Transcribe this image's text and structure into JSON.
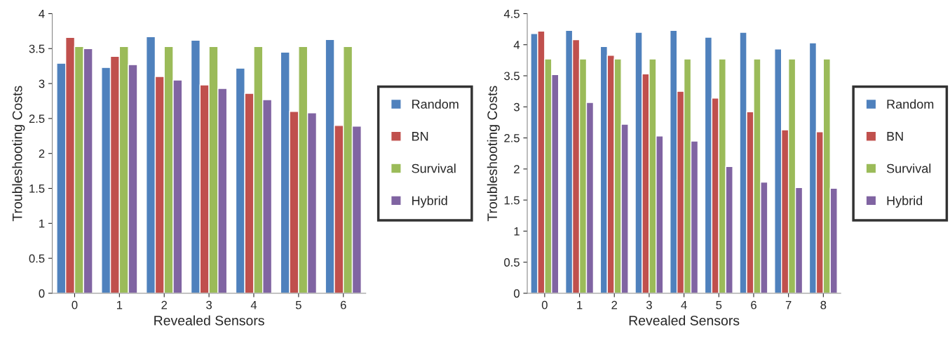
{
  "chart_data": [
    {
      "type": "bar",
      "xlabel": "Revealed Sensors",
      "ylabel": "Troubleshooting Costs",
      "categories": [
        "0",
        "1",
        "2",
        "3",
        "4",
        "5",
        "6"
      ],
      "series": [
        {
          "name": "Random",
          "color": "#4f81bd",
          "values": [
            3.29,
            3.23,
            3.67,
            3.62,
            3.22,
            3.45,
            3.63
          ]
        },
        {
          "name": "BN",
          "color": "#c0504d",
          "values": [
            3.66,
            3.39,
            3.1,
            2.98,
            2.86,
            2.6,
            2.4
          ]
        },
        {
          "name": "Survival",
          "color": "#9bbb59",
          "values": [
            3.53,
            3.53,
            3.53,
            3.53,
            3.53,
            3.53,
            3.53
          ]
        },
        {
          "name": "Hybrid",
          "color": "#8064a2",
          "values": [
            3.5,
            3.27,
            3.05,
            2.93,
            2.77,
            2.58,
            2.39
          ]
        }
      ],
      "ylim": [
        0,
        4
      ],
      "yticks": [
        0,
        0.5,
        1,
        1.5,
        2,
        2.5,
        3,
        3.5,
        4
      ],
      "grid": false,
      "legend": "right"
    },
    {
      "type": "bar",
      "xlabel": "Revealed Sensors",
      "ylabel": "Troubleshooting Costs",
      "categories": [
        "0",
        "1",
        "2",
        "3",
        "4",
        "5",
        "6",
        "7",
        "8"
      ],
      "series": [
        {
          "name": "Random",
          "color": "#4f81bd",
          "values": [
            4.18,
            4.23,
            3.97,
            4.2,
            4.23,
            4.12,
            4.2,
            3.93,
            4.03
          ]
        },
        {
          "name": "BN",
          "color": "#c0504d",
          "values": [
            4.22,
            4.08,
            3.83,
            3.53,
            3.25,
            3.14,
            2.92,
            2.63,
            2.6
          ]
        },
        {
          "name": "Survival",
          "color": "#9bbb59",
          "values": [
            3.77,
            3.77,
            3.77,
            3.77,
            3.77,
            3.77,
            3.77,
            3.77,
            3.77
          ]
        },
        {
          "name": "Hybrid",
          "color": "#8064a2",
          "values": [
            3.52,
            3.07,
            2.72,
            2.53,
            2.45,
            2.04,
            1.79,
            1.7,
            1.69
          ]
        }
      ],
      "ylim": [
        0,
        4.5
      ],
      "yticks": [
        0,
        0.5,
        1,
        1.5,
        2,
        2.5,
        3,
        3.5,
        4,
        4.5
      ],
      "grid": false,
      "legend": "right"
    }
  ]
}
